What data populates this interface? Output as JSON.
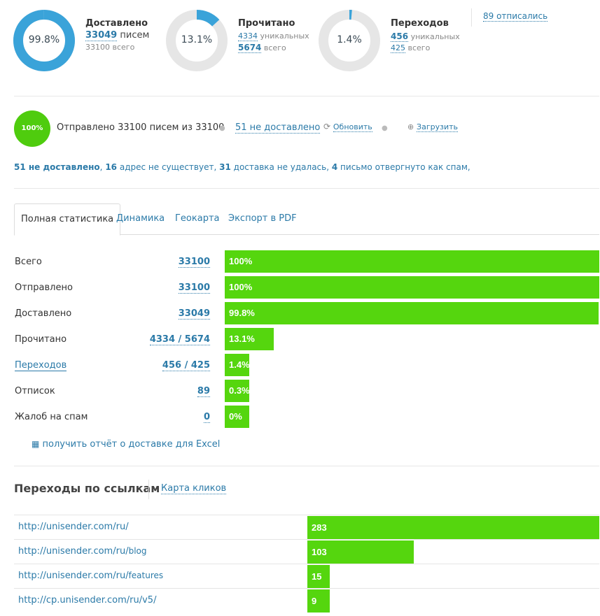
{
  "colors": {
    "accent": "#2b7aa8",
    "green_bar": "#55d60e",
    "donut_track": "#e6e6e6",
    "donut_fill": "#3aa3d9"
  },
  "delivered": {
    "percent_label": "99.8%",
    "fraction": 0.998,
    "title": "Доставлено",
    "count": "33049",
    "count_suffix": "писем",
    "total_line": "33100 всего"
  },
  "read": {
    "percent_label": "13.1%",
    "fraction": 0.131,
    "title": "Прочитано",
    "unique": "4334",
    "unique_suffix": "уникальных",
    "total": "5674",
    "total_suffix": "всего"
  },
  "clicks": {
    "percent_label": "1.4%",
    "fraction": 0.014,
    "title": "Переходов",
    "unique": "456",
    "unique_suffix": "уникальных",
    "total": "425",
    "total_suffix": "всего"
  },
  "unsubscribed_link": "89 отписались",
  "sent": {
    "circle_label": "100%",
    "text": "Отправлено 33100 писем из 33100",
    "undelivered_link": "51 не доставлено",
    "refresh_label": "Обновить",
    "download_label": "Загрузить"
  },
  "summary": {
    "n1": "51 не доставлено",
    "sep1": ",",
    "n2": "16",
    "t2": "адрес не существует,",
    "n3": "31",
    "t3": "доставка не удалась,",
    "n4": "4",
    "t4": "письмо отвергнуто как спам,"
  },
  "tabs": [
    "Полная статистика",
    "Динамика",
    "Геокарта",
    "Экспорт в PDF"
  ],
  "stats_rows": [
    {
      "label": "Всего",
      "value": "33100",
      "percent": "100%",
      "fraction": 1.0,
      "label_link": false
    },
    {
      "label": "Отправлено",
      "value": "33100",
      "percent": "100%",
      "fraction": 1.0,
      "label_link": false
    },
    {
      "label": "Доставлено",
      "value": "33049",
      "percent": "99.8%",
      "fraction": 0.998,
      "label_link": false
    },
    {
      "label": "Прочитано",
      "value": "4334 / 5674",
      "percent": "13.1%",
      "fraction": 0.131,
      "label_link": false
    },
    {
      "label": "Переходов",
      "value": "456 / 425",
      "percent": "1.4%",
      "fraction": 0.014,
      "label_link": true
    },
    {
      "label": "Отписок",
      "value": "89",
      "percent": "0.3%",
      "fraction": 0.003,
      "label_link": false
    },
    {
      "label": "Жалоб на спам",
      "value": "0",
      "percent": "0%",
      "fraction": 0.0,
      "label_link": false
    }
  ],
  "excel_link": "получить отчёт о доставке для Excel",
  "links_section": {
    "title": "Переходы по ссылкам",
    "map_link": "Карта кликов"
  },
  "link_rows": [
    {
      "base": "http://unisender.com/ru/",
      "suffix": "",
      "count": "283",
      "value": 283
    },
    {
      "base": "http://unisender.com/ru/",
      "suffix": "blog",
      "count": "103",
      "value": 103
    },
    {
      "base": "http://unisender.com/ru/",
      "suffix": "features",
      "count": "15",
      "value": 15
    },
    {
      "base": "http://cp.unisender.com/ru/v5/",
      "suffix": "",
      "count": "9",
      "value": 9
    }
  ]
}
